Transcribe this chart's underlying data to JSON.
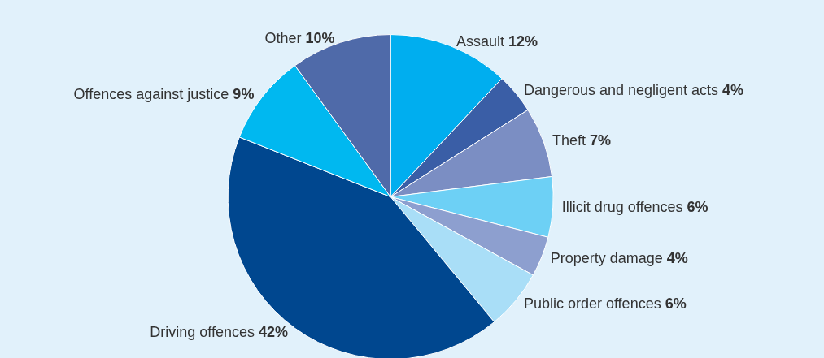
{
  "chart_data": {
    "type": "pie",
    "categories": [
      "Assault",
      "Dangerous and negligent acts",
      "Theft",
      "Illicit drug offences",
      "Property damage",
      "Public order offences",
      "Driving offences",
      "Offences against justice",
      "Other"
    ],
    "values": [
      12,
      4,
      7,
      6,
      4,
      6,
      42,
      9,
      10
    ],
    "value_labels": [
      "12%",
      "4%",
      "7%",
      "6%",
      "4%",
      "6%",
      "42%",
      "9%",
      "10%"
    ],
    "colors": [
      "#00aeef",
      "#3a5ea6",
      "#7b8ec3",
      "#6dd0f5",
      "#8d9fcf",
      "#a9def7",
      "#00478f",
      "#00b8f0",
      "#4f6aa9"
    ],
    "legend": false
  }
}
